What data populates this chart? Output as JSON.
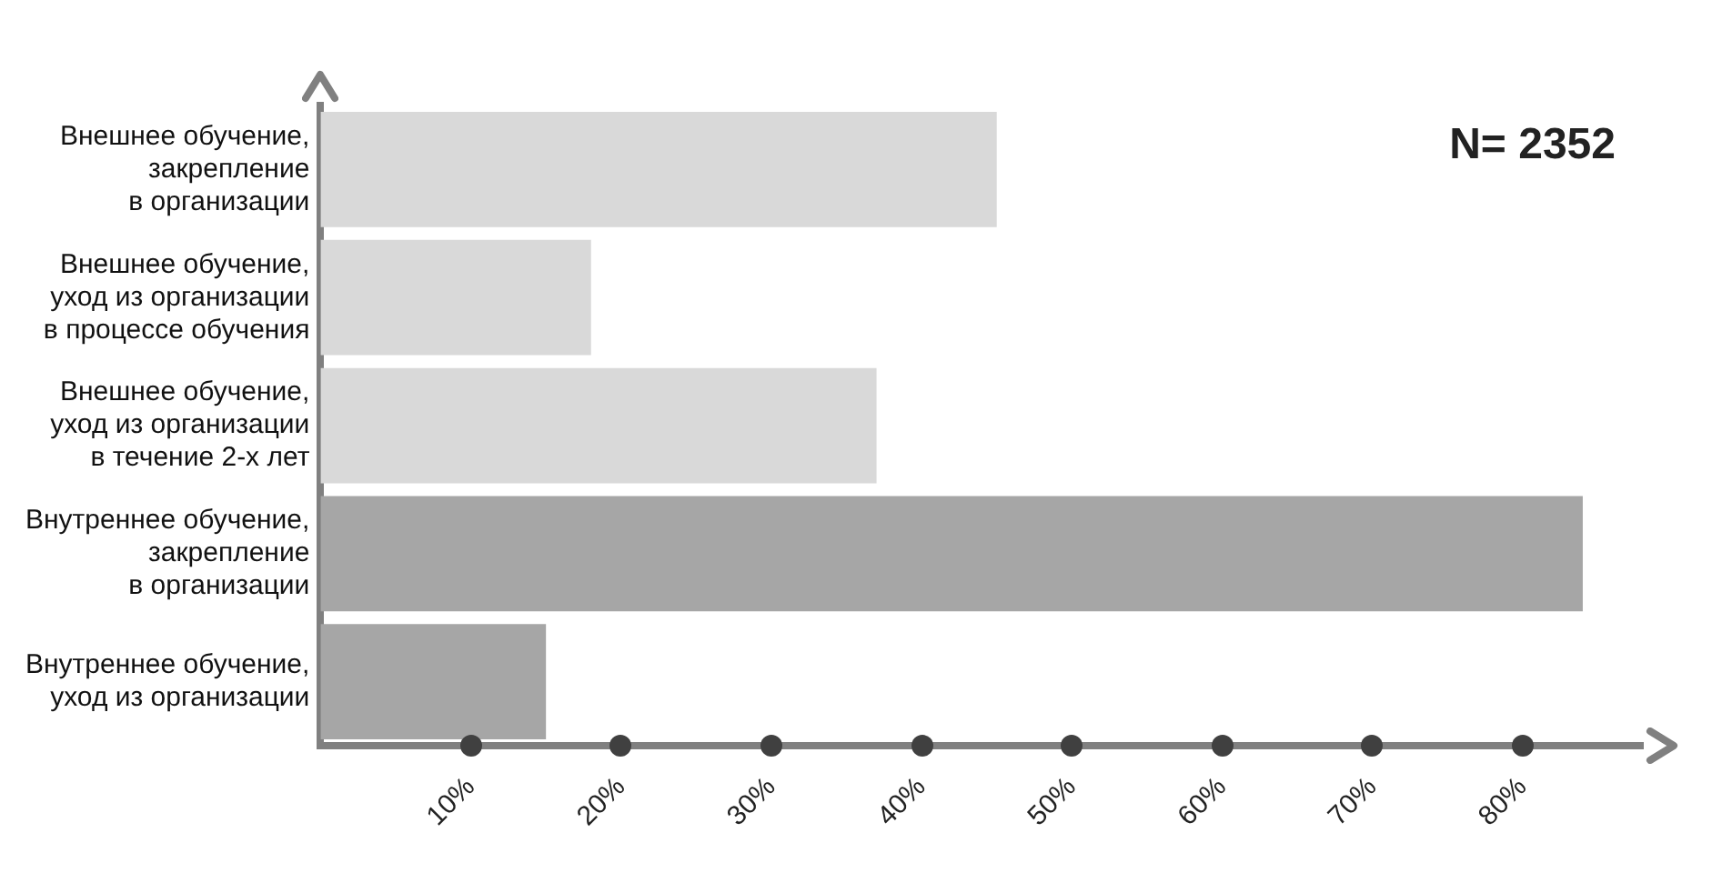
{
  "chart_data": {
    "type": "bar",
    "orientation": "horizontal",
    "categories": [
      "Внешнее обучение,\nзакрепление\nв организации",
      "Внешнее обучение,\nуход из организации\nв процессе обучения",
      "Внешнее обучение,\nуход из организации\nв течение 2-х лет",
      "Внутреннее обучение,\nзакрепление\nв организации",
      "Внутреннее обучение,\nуход из организации"
    ],
    "values": [
      45,
      18,
      37,
      84,
      15
    ],
    "colors": [
      "#d9d9d9",
      "#d9d9d9",
      "#d9d9d9",
      "#a6a6a6",
      "#a6a6a6"
    ],
    "xlim": [
      0,
      88
    ],
    "xticks": [
      {
        "value": 10,
        "label": "10%"
      },
      {
        "value": 20,
        "label": "20%"
      },
      {
        "value": 30,
        "label": "30%"
      },
      {
        "value": 40,
        "label": "40%"
      },
      {
        "value": 50,
        "label": "50%"
      },
      {
        "value": 60,
        "label": "60%"
      },
      {
        "value": 70,
        "label": "70%"
      },
      {
        "value": 80,
        "label": "80%"
      }
    ],
    "annotations": [
      "N= 2352"
    ],
    "grid": false,
    "legend": false
  }
}
